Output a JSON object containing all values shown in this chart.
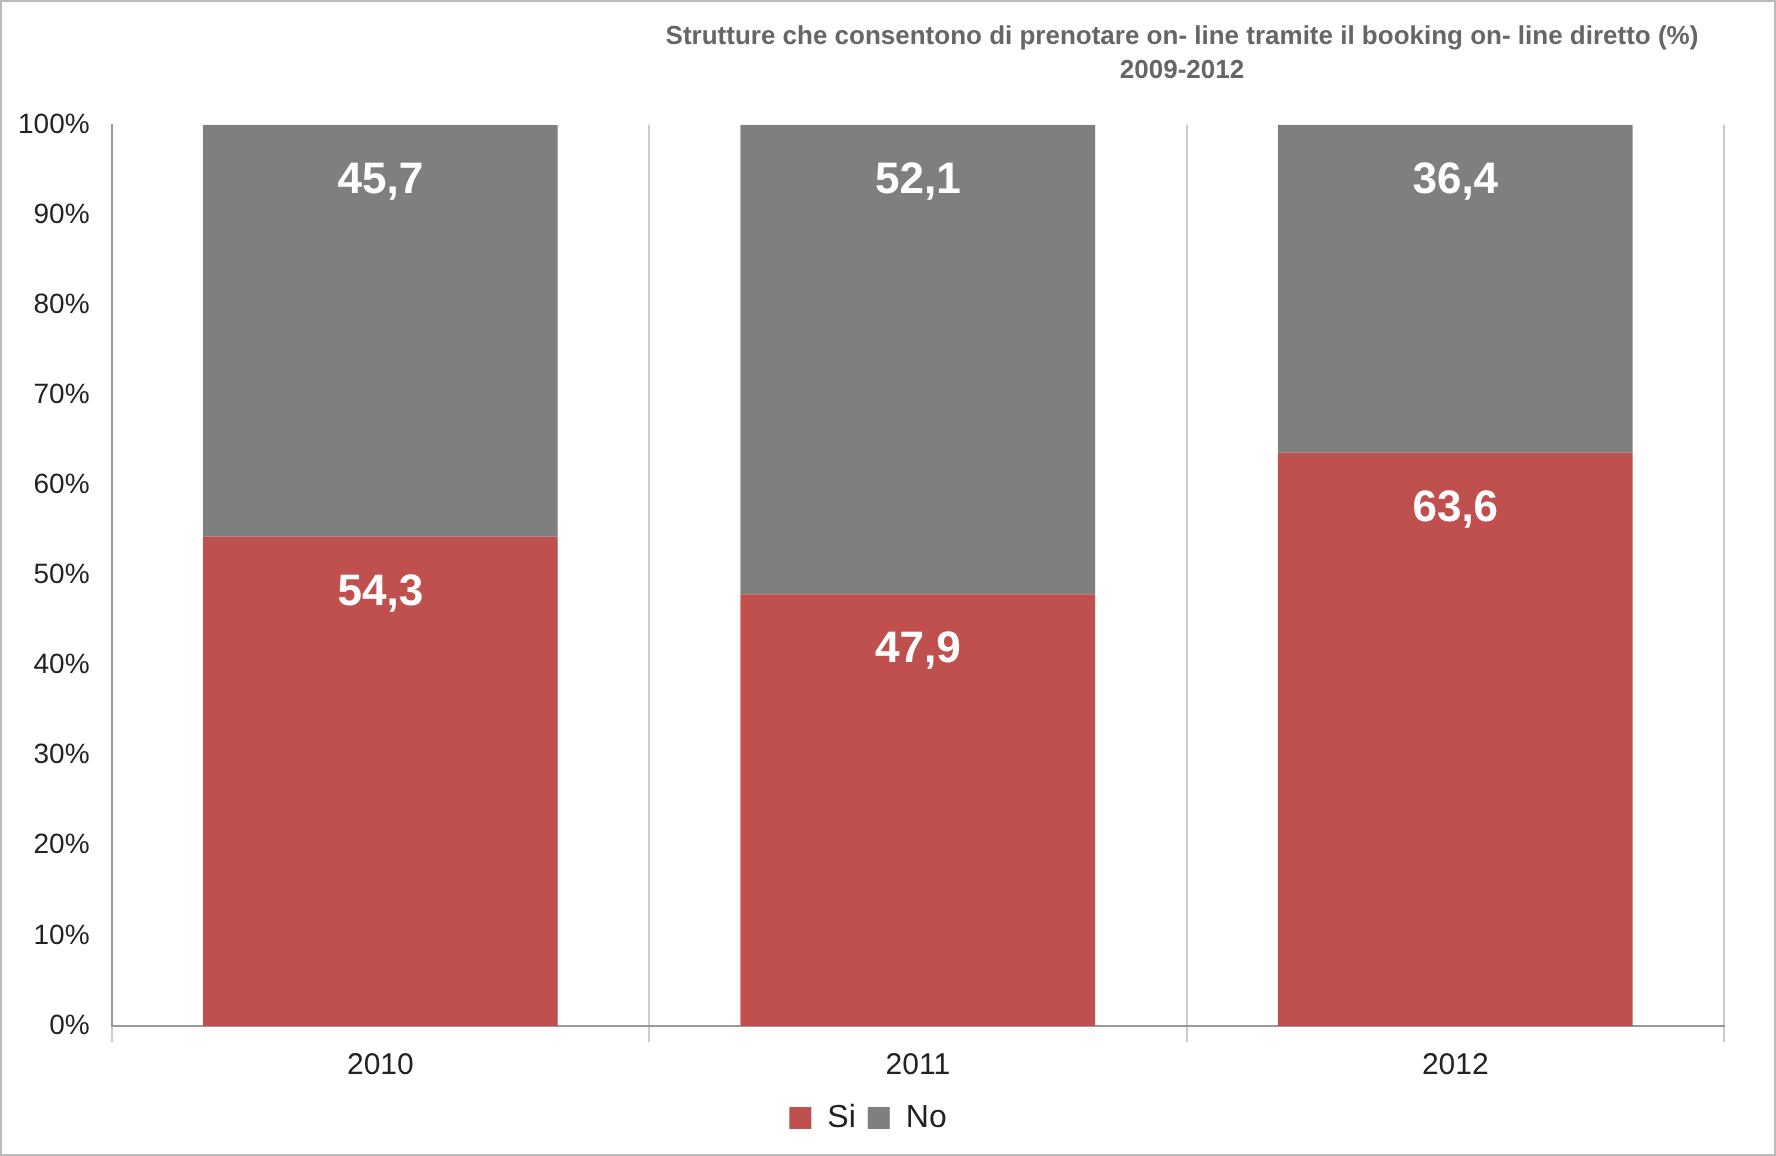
{
  "chart_data": {
    "type": "bar",
    "title": "Strutture che consentono di prenotare on- line tramite il booking on- line diretto  (%)",
    "subtitle": "2009-2012",
    "categories": [
      "2010",
      "2011",
      "2012"
    ],
    "stacked": true,
    "series": [
      {
        "name": "Si",
        "color": "#c0504d",
        "values": [
          54.3,
          47.9,
          63.6
        ]
      },
      {
        "name": "No",
        "color": "#7f7f7f",
        "values": [
          45.7,
          52.1,
          36.4
        ]
      }
    ],
    "value_labels": [
      [
        "54,3",
        "47,9",
        "63,6"
      ],
      [
        "45,7",
        "52,1",
        "36,4"
      ]
    ],
    "ylim": [
      0,
      100
    ],
    "yticks": [
      {
        "value": 0,
        "label": "0%"
      },
      {
        "value": 10,
        "label": "10%"
      },
      {
        "value": 20,
        "label": "20%"
      },
      {
        "value": 30,
        "label": "30%"
      },
      {
        "value": 40,
        "label": "40%"
      },
      {
        "value": 50,
        "label": "50%"
      },
      {
        "value": 60,
        "label": "60%"
      },
      {
        "value": 70,
        "label": "70%"
      },
      {
        "value": 80,
        "label": "80%"
      },
      {
        "value": 90,
        "label": "90%"
      },
      {
        "value": 100,
        "label": "100%"
      }
    ],
    "grid": "x",
    "legend": "bottom"
  }
}
